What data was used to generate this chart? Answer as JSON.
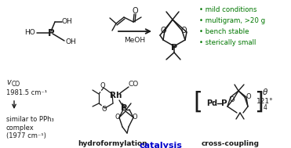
{
  "bg_color": "#ffffff",
  "bullet_color": "#007700",
  "catalysis_color": "#0000cc",
  "black": "#1a1a1a",
  "gray": "#555555",
  "bullets": [
    "mild conditions",
    "multigram, >20 g",
    "bench stable",
    "sterically small"
  ],
  "label_hydroformylation": "hydroformylation",
  "label_cross_coupling": "cross-coupling",
  "label_catalysis": "catalysis",
  "meoh": "MeOH"
}
